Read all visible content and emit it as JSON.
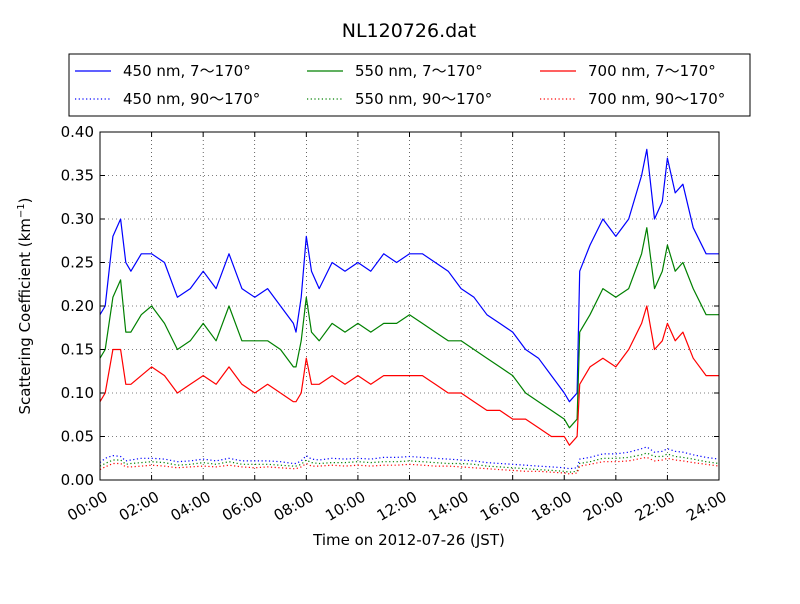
{
  "chart_data": {
    "type": "line",
    "title": "NL120726.dat",
    "xlabel": "Time on 2012-07-26 (JST)",
    "ylabel": "Scattering Coefficient (km",
    "ylabel_sup": "−1",
    "ylabel_close": ")",
    "xlim": [
      0,
      24
    ],
    "ylim": [
      0,
      0.4
    ],
    "grid": true,
    "legend_position": "top",
    "x_ticks": [
      0,
      2,
      4,
      6,
      8,
      10,
      12,
      14,
      16,
      18,
      20,
      22,
      24
    ],
    "x_tick_labels": [
      "00:00",
      "02:00",
      "04:00",
      "06:00",
      "08:00",
      "10:00",
      "12:00",
      "14:00",
      "16:00",
      "18:00",
      "20:00",
      "22:00",
      "24:00"
    ],
    "y_ticks": [
      0,
      0.05,
      0.1,
      0.15,
      0.2,
      0.25,
      0.3,
      0.35,
      0.4
    ],
    "y_tick_labels": [
      "0.00",
      "0.05",
      "0.10",
      "0.15",
      "0.20",
      "0.25",
      "0.30",
      "0.35",
      "0.40"
    ],
    "x": [
      0,
      0.2,
      0.5,
      0.8,
      1.0,
      1.2,
      1.6,
      2.0,
      2.5,
      3.0,
      3.5,
      4.0,
      4.5,
      5.0,
      5.5,
      6.0,
      6.5,
      7.0,
      7.5,
      7.6,
      7.8,
      8.0,
      8.2,
      8.5,
      9.0,
      9.5,
      10.0,
      10.5,
      11.0,
      11.5,
      12.0,
      12.5,
      13.0,
      13.5,
      14.0,
      14.5,
      15.0,
      15.5,
      16.0,
      16.5,
      17.0,
      17.5,
      18.0,
      18.2,
      18.5,
      18.6,
      19.0,
      19.5,
      20.0,
      20.5,
      21.0,
      21.2,
      21.5,
      21.8,
      22.0,
      22.3,
      22.6,
      23.0,
      23.5,
      24.0
    ],
    "series": [
      {
        "name": "450 nm, 7～170°",
        "color": "#0000ff",
        "style": "solid",
        "values": [
          0.19,
          0.2,
          0.28,
          0.3,
          0.25,
          0.24,
          0.26,
          0.26,
          0.25,
          0.21,
          0.22,
          0.24,
          0.22,
          0.26,
          0.22,
          0.21,
          0.22,
          0.2,
          0.18,
          0.17,
          0.21,
          0.28,
          0.24,
          0.22,
          0.25,
          0.24,
          0.25,
          0.24,
          0.26,
          0.25,
          0.26,
          0.26,
          0.25,
          0.24,
          0.22,
          0.21,
          0.19,
          0.18,
          0.17,
          0.15,
          0.14,
          0.12,
          0.1,
          0.09,
          0.1,
          0.24,
          0.27,
          0.3,
          0.28,
          0.3,
          0.35,
          0.38,
          0.3,
          0.32,
          0.37,
          0.33,
          0.34,
          0.29,
          0.26,
          0.26
        ]
      },
      {
        "name": "550 nm, 7～170°",
        "color": "#008000",
        "style": "solid",
        "values": [
          0.14,
          0.15,
          0.21,
          0.23,
          0.17,
          0.17,
          0.19,
          0.2,
          0.18,
          0.15,
          0.16,
          0.18,
          0.16,
          0.2,
          0.16,
          0.16,
          0.16,
          0.15,
          0.13,
          0.13,
          0.16,
          0.21,
          0.17,
          0.16,
          0.18,
          0.17,
          0.18,
          0.17,
          0.18,
          0.18,
          0.19,
          0.18,
          0.17,
          0.16,
          0.16,
          0.15,
          0.14,
          0.13,
          0.12,
          0.1,
          0.09,
          0.08,
          0.07,
          0.06,
          0.07,
          0.17,
          0.19,
          0.22,
          0.21,
          0.22,
          0.26,
          0.29,
          0.22,
          0.24,
          0.27,
          0.24,
          0.25,
          0.22,
          0.19,
          0.19
        ]
      },
      {
        "name": "700 nm, 7～170°",
        "color": "#ff0000",
        "style": "solid",
        "values": [
          0.09,
          0.1,
          0.15,
          0.15,
          0.11,
          0.11,
          0.12,
          0.13,
          0.12,
          0.1,
          0.11,
          0.12,
          0.11,
          0.13,
          0.11,
          0.1,
          0.11,
          0.1,
          0.09,
          0.09,
          0.1,
          0.14,
          0.11,
          0.11,
          0.12,
          0.11,
          0.12,
          0.11,
          0.12,
          0.12,
          0.12,
          0.12,
          0.11,
          0.1,
          0.1,
          0.09,
          0.08,
          0.08,
          0.07,
          0.07,
          0.06,
          0.05,
          0.05,
          0.04,
          0.05,
          0.11,
          0.13,
          0.14,
          0.13,
          0.15,
          0.18,
          0.2,
          0.15,
          0.16,
          0.18,
          0.16,
          0.17,
          0.14,
          0.12,
          0.12
        ]
      },
      {
        "name": "450 nm, 90～170°",
        "color": "#0000ff",
        "style": "dotted",
        "values": [
          0.02,
          0.025,
          0.028,
          0.027,
          0.022,
          0.023,
          0.025,
          0.025,
          0.024,
          0.021,
          0.022,
          0.024,
          0.022,
          0.025,
          0.022,
          0.022,
          0.022,
          0.021,
          0.019,
          0.019,
          0.022,
          0.028,
          0.024,
          0.023,
          0.025,
          0.024,
          0.025,
          0.024,
          0.026,
          0.026,
          0.027,
          0.026,
          0.025,
          0.024,
          0.023,
          0.022,
          0.02,
          0.019,
          0.018,
          0.017,
          0.016,
          0.015,
          0.014,
          0.013,
          0.014,
          0.024,
          0.026,
          0.03,
          0.03,
          0.032,
          0.036,
          0.038,
          0.032,
          0.033,
          0.036,
          0.033,
          0.032,
          0.029,
          0.026,
          0.024
        ]
      },
      {
        "name": "550 nm, 90～170°",
        "color": "#008000",
        "style": "dotted",
        "values": [
          0.016,
          0.019,
          0.023,
          0.023,
          0.018,
          0.019,
          0.02,
          0.021,
          0.02,
          0.017,
          0.018,
          0.02,
          0.018,
          0.021,
          0.018,
          0.018,
          0.018,
          0.017,
          0.016,
          0.016,
          0.018,
          0.023,
          0.02,
          0.019,
          0.02,
          0.02,
          0.021,
          0.02,
          0.021,
          0.021,
          0.022,
          0.021,
          0.02,
          0.019,
          0.019,
          0.018,
          0.016,
          0.015,
          0.014,
          0.013,
          0.012,
          0.011,
          0.01,
          0.009,
          0.01,
          0.019,
          0.021,
          0.025,
          0.025,
          0.026,
          0.029,
          0.031,
          0.027,
          0.027,
          0.03,
          0.027,
          0.026,
          0.024,
          0.021,
          0.019
        ]
      },
      {
        "name": "700 nm, 90～170°",
        "color": "#ff0000",
        "style": "dotted",
        "values": [
          0.012,
          0.015,
          0.019,
          0.019,
          0.015,
          0.015,
          0.016,
          0.017,
          0.016,
          0.014,
          0.015,
          0.016,
          0.015,
          0.017,
          0.015,
          0.014,
          0.015,
          0.014,
          0.013,
          0.013,
          0.015,
          0.019,
          0.016,
          0.016,
          0.017,
          0.016,
          0.017,
          0.016,
          0.017,
          0.017,
          0.018,
          0.017,
          0.016,
          0.016,
          0.015,
          0.014,
          0.013,
          0.012,
          0.011,
          0.01,
          0.01,
          0.009,
          0.008,
          0.007,
          0.008,
          0.016,
          0.018,
          0.021,
          0.021,
          0.022,
          0.025,
          0.026,
          0.022,
          0.023,
          0.025,
          0.023,
          0.022,
          0.02,
          0.018,
          0.016
        ]
      }
    ],
    "legend_order": [
      0,
      1,
      2,
      3,
      4,
      5
    ]
  }
}
